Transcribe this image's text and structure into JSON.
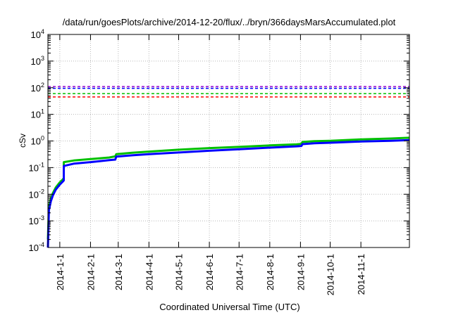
{
  "chart_data": {
    "type": "line",
    "title": "/data/run/goesPlots/archive/2014-12-20/flux/../bryn/366daysMarsAccumulated.plot",
    "xlabel": "Coordinated Universal Time (UTC)",
    "ylabel": "cSv",
    "x_range": [
      "2013-12-20",
      "2014-12-20"
    ],
    "y_range": [
      0.0001,
      10000
    ],
    "y_scale": "log",
    "grid": true,
    "y_ticks": [
      {
        "value": 0.0001,
        "base": "10",
        "exp": "-4"
      },
      {
        "value": 0.001,
        "base": "10",
        "exp": "-3"
      },
      {
        "value": 0.01,
        "base": "10",
        "exp": "-2"
      },
      {
        "value": 0.1,
        "base": "10",
        "exp": "-1"
      },
      {
        "value": 1,
        "base": "10",
        "exp": "0"
      },
      {
        "value": 10,
        "base": "10",
        "exp": "1"
      },
      {
        "value": 100,
        "base": "10",
        "exp": "2"
      },
      {
        "value": 1000,
        "base": "10",
        "exp": "3"
      },
      {
        "value": 10000,
        "base": "10",
        "exp": "4"
      }
    ],
    "x_ticks": [
      {
        "date": "2014-01-01",
        "label": "2014-1-1"
      },
      {
        "date": "2014-02-01",
        "label": "2014-2-1"
      },
      {
        "date": "2014-03-01",
        "label": "2014-3-1"
      },
      {
        "date": "2014-04-01",
        "label": "2014-4-1"
      },
      {
        "date": "2014-05-01",
        "label": "2014-5-1"
      },
      {
        "date": "2014-06-01",
        "label": "2014-6-1"
      },
      {
        "date": "2014-07-01",
        "label": "2014-7-1"
      },
      {
        "date": "2014-08-01",
        "label": "2014-8-1"
      },
      {
        "date": "2014-09-01",
        "label": "2014-9-1"
      },
      {
        "date": "2014-10-01",
        "label": "2014-10-1"
      },
      {
        "date": "2014-11-01",
        "label": "2014-11-1"
      }
    ],
    "reference_lines": [
      {
        "value": 110,
        "color": "#9400d3"
      },
      {
        "value": 95,
        "color": "#0000ff"
      },
      {
        "value": 60,
        "color": "#00c000"
      },
      {
        "value": 45,
        "color": "#ff0000"
      }
    ],
    "series": [
      {
        "color": "#00c000",
        "points": [
          [
            "2013-12-20",
            0.0002
          ],
          [
            "2013-12-21",
            0.0035
          ],
          [
            "2013-12-23",
            0.007
          ],
          [
            "2013-12-25",
            0.011
          ],
          [
            "2013-12-28",
            0.018
          ],
          [
            "2014-01-01",
            0.028
          ],
          [
            "2014-01-04",
            0.036
          ],
          [
            "2014-01-05",
            0.04
          ],
          [
            "2014-01-05",
            0.16
          ],
          [
            "2014-01-15",
            0.185
          ],
          [
            "2014-02-01",
            0.21
          ],
          [
            "2014-02-20",
            0.24
          ],
          [
            "2014-02-26",
            0.265
          ],
          [
            "2014-02-27",
            0.32
          ],
          [
            "2014-03-15",
            0.36
          ],
          [
            "2014-04-01",
            0.4
          ],
          [
            "2014-05-01",
            0.47
          ],
          [
            "2014-06-01",
            0.54
          ],
          [
            "2014-07-01",
            0.6
          ],
          [
            "2014-08-01",
            0.68
          ],
          [
            "2014-08-28",
            0.75
          ],
          [
            "2014-09-02",
            0.78
          ],
          [
            "2014-09-03",
            0.92
          ],
          [
            "2014-09-15",
            0.98
          ],
          [
            "2014-10-01",
            1.02
          ],
          [
            "2014-11-01",
            1.15
          ],
          [
            "2014-12-01",
            1.24
          ],
          [
            "2014-12-20",
            1.32
          ]
        ]
      },
      {
        "color": "#0000ff",
        "points": [
          [
            "2013-12-20",
            0.0001
          ],
          [
            "2013-12-21",
            0.0025
          ],
          [
            "2013-12-23",
            0.0055
          ],
          [
            "2013-12-25",
            0.009
          ],
          [
            "2013-12-28",
            0.015
          ],
          [
            "2014-01-01",
            0.023
          ],
          [
            "2014-01-04",
            0.03
          ],
          [
            "2014-01-05",
            0.033
          ],
          [
            "2014-01-05",
            0.115
          ],
          [
            "2014-01-15",
            0.14
          ],
          [
            "2014-02-01",
            0.16
          ],
          [
            "2014-02-20",
            0.19
          ],
          [
            "2014-02-26",
            0.2
          ],
          [
            "2014-02-27",
            0.26
          ],
          [
            "2014-03-15",
            0.29
          ],
          [
            "2014-04-01",
            0.32
          ],
          [
            "2014-05-01",
            0.37
          ],
          [
            "2014-06-01",
            0.43
          ],
          [
            "2014-07-01",
            0.49
          ],
          [
            "2014-08-01",
            0.56
          ],
          [
            "2014-08-28",
            0.63
          ],
          [
            "2014-09-02",
            0.65
          ],
          [
            "2014-09-03",
            0.76
          ],
          [
            "2014-09-15",
            0.82
          ],
          [
            "2014-10-01",
            0.86
          ],
          [
            "2014-11-01",
            0.95
          ],
          [
            "2014-12-01",
            1.02
          ],
          [
            "2014-12-20",
            1.08
          ]
        ]
      }
    ]
  }
}
